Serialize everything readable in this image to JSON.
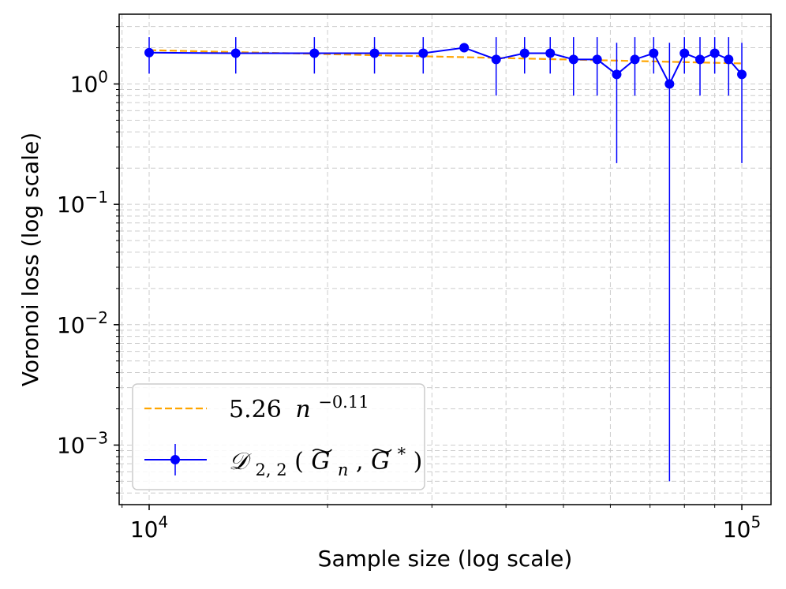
{
  "chart_data": {
    "type": "line",
    "scale": {
      "x": "log",
      "y": "log"
    },
    "xlabel": "Sample size (log scale)",
    "ylabel": "Voronoi loss (log scale)",
    "xlim": [
      8900,
      112000
    ],
    "ylim": [
      0.00032,
      3.8
    ],
    "x_ticks": [
      {
        "value": 10000,
        "base": "10",
        "exp": "4"
      },
      {
        "value": 100000,
        "base": "10",
        "exp": "5"
      }
    ],
    "y_ticks": [
      {
        "value": 1,
        "base": "10",
        "exp": "0"
      },
      {
        "value": 0.1,
        "base": "10",
        "exp": "−1"
      },
      {
        "value": 0.01,
        "base": "10",
        "exp": "−2"
      },
      {
        "value": 0.001,
        "base": "10",
        "exp": "−3"
      }
    ],
    "grid": true,
    "legend_position": "lower-left",
    "fit": {
      "name": "5.26 n^-0.11",
      "label_coef": "5.26",
      "label_var": "n",
      "label_exp": "−0.11",
      "coefficient": 5.26,
      "exponent": -0.11,
      "color": "#FFA500"
    },
    "series": [
      {
        "name": "D_{2,2}(G~_n, G~*)",
        "label_parts": {
          "D": "𝒟",
          "sub": "2, 2",
          "open": "(",
          "G1": "G",
          "sub1": "n",
          "comma": ", ",
          "G2": "G",
          "sup2": "*",
          "close": ")"
        },
        "color": "#0000FF",
        "x": [
          10000,
          14000,
          19000,
          24000,
          29000,
          34000,
          38500,
          43000,
          47500,
          52000,
          57000,
          61500,
          66000,
          71000,
          75500,
          80000,
          85000,
          90000,
          95000,
          100000
        ],
        "y": [
          1.82,
          1.8,
          1.8,
          1.8,
          1.8,
          2.0,
          1.6,
          1.8,
          1.8,
          1.6,
          1.6,
          1.2,
          1.6,
          1.8,
          1.0,
          1.8,
          1.6,
          1.8,
          1.6,
          1.2
        ],
        "yerr_low": [
          1.22,
          1.22,
          1.22,
          1.22,
          1.22,
          2.0,
          0.8,
          1.22,
          1.22,
          0.8,
          0.8,
          0.22,
          0.8,
          1.22,
          0.0005,
          1.22,
          0.8,
          1.22,
          0.8,
          0.22
        ],
        "yerr_high": [
          2.45,
          2.45,
          2.45,
          2.45,
          2.45,
          2.0,
          2.45,
          2.45,
          2.45,
          2.45,
          2.45,
          2.2,
          2.45,
          2.45,
          2.2,
          2.45,
          2.45,
          2.45,
          2.45,
          2.2
        ]
      }
    ]
  }
}
